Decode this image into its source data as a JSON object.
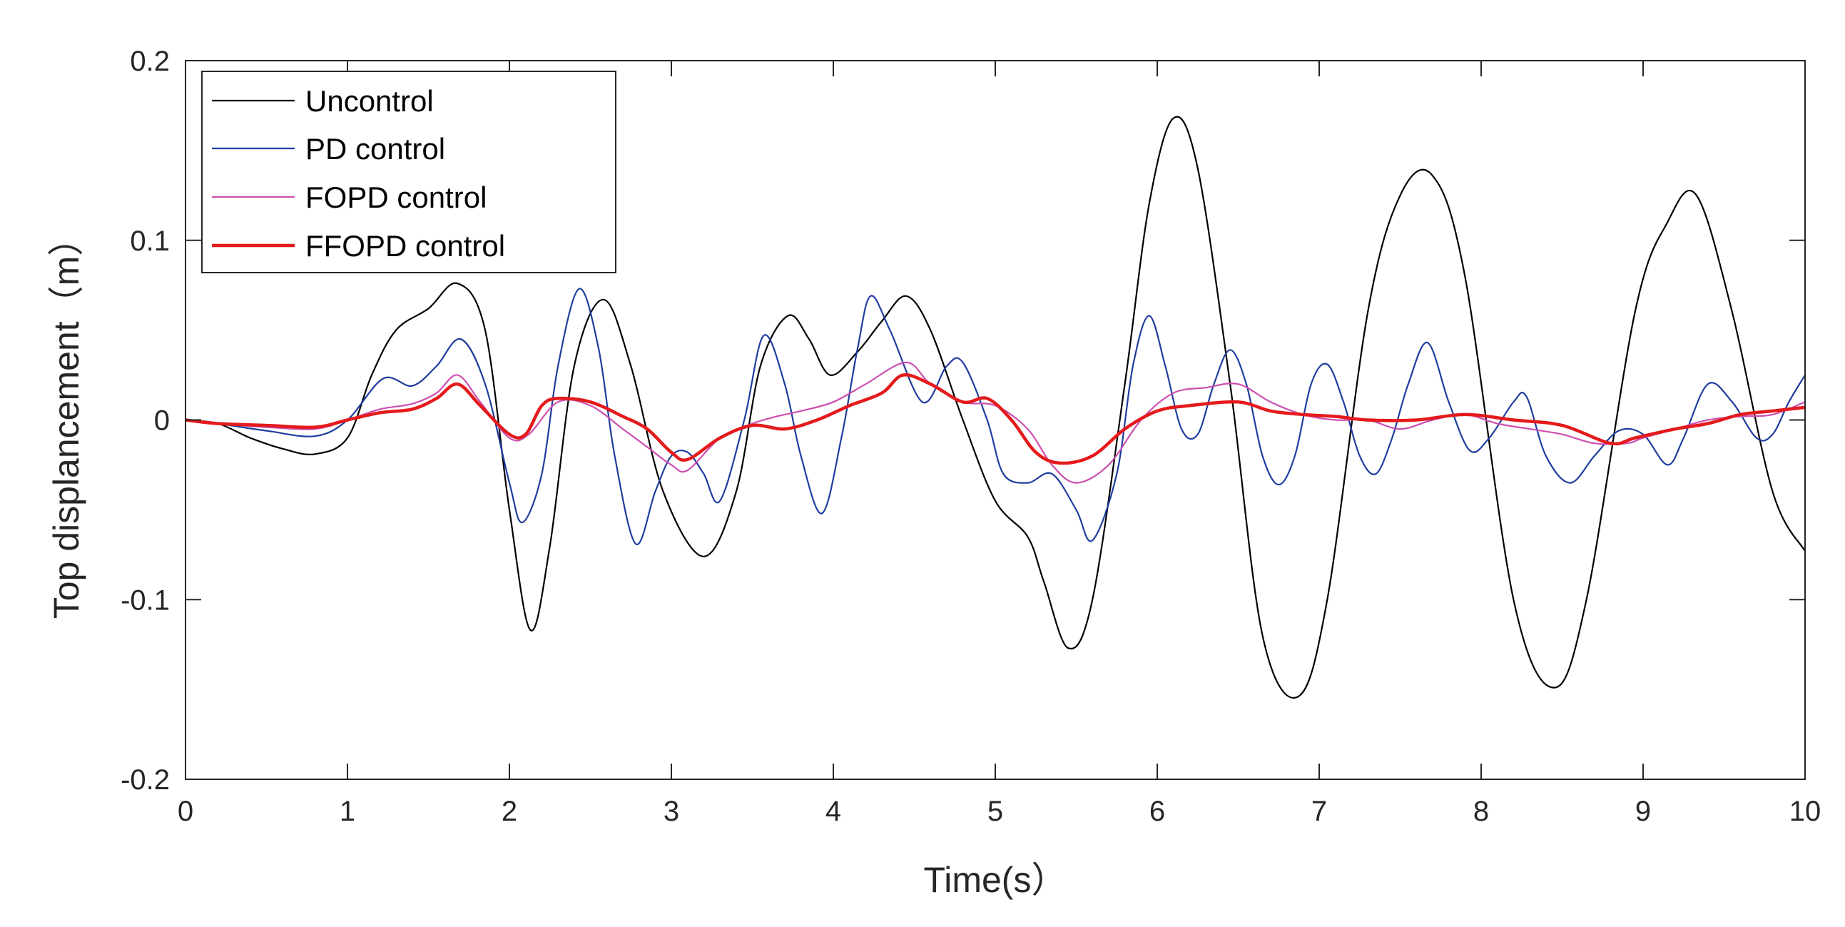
{
  "chart_data": {
    "type": "line",
    "xlabel": "Time(s）",
    "ylabel": "Top displancement（m）",
    "xlim": [
      0,
      10
    ],
    "ylim": [
      -0.2,
      0.2
    ],
    "xticks": [
      0,
      1,
      2,
      3,
      4,
      5,
      6,
      7,
      8,
      9,
      10
    ],
    "yticks": [
      -0.2,
      -0.1,
      0,
      0.1,
      0.2
    ],
    "xtick_labels": [
      "0",
      "1",
      "2",
      "3",
      "4",
      "5",
      "6",
      "7",
      "8",
      "9",
      "10"
    ],
    "ytick_labels": [
      "-0.2",
      "-0.1",
      "0",
      "0.1",
      "0.2"
    ],
    "legend_position": "top-left",
    "grid": false,
    "series": [
      {
        "name": "Uncontrol",
        "color": "#000000",
        "points": [
          [
            0,
            0
          ],
          [
            0.2,
            -0.002
          ],
          [
            0.4,
            -0.01
          ],
          [
            0.6,
            -0.016
          ],
          [
            0.8,
            -0.019
          ],
          [
            1.0,
            -0.01
          ],
          [
            1.15,
            0.025
          ],
          [
            1.3,
            0.05
          ],
          [
            1.5,
            0.062
          ],
          [
            1.68,
            0.076
          ],
          [
            1.85,
            0.05
          ],
          [
            2.0,
            -0.05
          ],
          [
            2.13,
            -0.117
          ],
          [
            2.25,
            -0.07
          ],
          [
            2.4,
            0.03
          ],
          [
            2.58,
            0.067
          ],
          [
            2.75,
            0.03
          ],
          [
            2.95,
            -0.04
          ],
          [
            3.2,
            -0.076
          ],
          [
            3.4,
            -0.04
          ],
          [
            3.55,
            0.03
          ],
          [
            3.72,
            0.058
          ],
          [
            3.85,
            0.045
          ],
          [
            3.98,
            0.025
          ],
          [
            4.15,
            0.038
          ],
          [
            4.3,
            0.055
          ],
          [
            4.45,
            0.069
          ],
          [
            4.6,
            0.05
          ],
          [
            4.8,
            0.0
          ],
          [
            5.0,
            -0.045
          ],
          [
            5.2,
            -0.065
          ],
          [
            5.3,
            -0.09
          ],
          [
            5.45,
            -0.127
          ],
          [
            5.6,
            -0.1
          ],
          [
            5.8,
            0.02
          ],
          [
            5.95,
            0.12
          ],
          [
            6.1,
            0.168
          ],
          [
            6.25,
            0.14
          ],
          [
            6.45,
            0.02
          ],
          [
            6.65,
            -0.12
          ],
          [
            6.87,
            -0.154
          ],
          [
            7.05,
            -0.1
          ],
          [
            7.3,
            0.06
          ],
          [
            7.5,
            0.125
          ],
          [
            7.7,
            0.136
          ],
          [
            7.9,
            0.08
          ],
          [
            8.2,
            -0.1
          ],
          [
            8.45,
            -0.149
          ],
          [
            8.65,
            -0.1
          ],
          [
            8.95,
            0.06
          ],
          [
            9.15,
            0.11
          ],
          [
            9.33,
            0.125
          ],
          [
            9.55,
            0.06
          ],
          [
            9.8,
            -0.04
          ],
          [
            10.0,
            -0.073
          ]
        ]
      },
      {
        "name": "PD control",
        "color": "#1f3d9e",
        "points": [
          [
            0,
            0
          ],
          [
            0.2,
            -0.002
          ],
          [
            0.5,
            -0.006
          ],
          [
            0.8,
            -0.009
          ],
          [
            1.0,
            0.0
          ],
          [
            1.22,
            0.023
          ],
          [
            1.4,
            0.019
          ],
          [
            1.55,
            0.03
          ],
          [
            1.7,
            0.045
          ],
          [
            1.85,
            0.02
          ],
          [
            2.0,
            -0.035
          ],
          [
            2.08,
            -0.057
          ],
          [
            2.2,
            -0.03
          ],
          [
            2.3,
            0.03
          ],
          [
            2.43,
            0.073
          ],
          [
            2.55,
            0.04
          ],
          [
            2.65,
            -0.02
          ],
          [
            2.78,
            -0.069
          ],
          [
            2.9,
            -0.04
          ],
          [
            3.0,
            -0.02
          ],
          [
            3.1,
            -0.018
          ],
          [
            3.2,
            -0.03
          ],
          [
            3.3,
            -0.045
          ],
          [
            3.45,
            0.0
          ],
          [
            3.57,
            0.047
          ],
          [
            3.7,
            0.02
          ],
          [
            3.8,
            -0.02
          ],
          [
            3.93,
            -0.052
          ],
          [
            4.05,
            -0.01
          ],
          [
            4.15,
            0.04
          ],
          [
            4.23,
            0.069
          ],
          [
            4.35,
            0.05
          ],
          [
            4.55,
            0.01
          ],
          [
            4.7,
            0.03
          ],
          [
            4.8,
            0.032
          ],
          [
            4.95,
            0.0
          ],
          [
            5.05,
            -0.03
          ],
          [
            5.2,
            -0.035
          ],
          [
            5.35,
            -0.03
          ],
          [
            5.5,
            -0.05
          ],
          [
            5.6,
            -0.067
          ],
          [
            5.75,
            -0.03
          ],
          [
            5.85,
            0.03
          ],
          [
            5.95,
            0.058
          ],
          [
            6.05,
            0.03
          ],
          [
            6.15,
            -0.005
          ],
          [
            6.25,
            -0.008
          ],
          [
            6.35,
            0.02
          ],
          [
            6.45,
            0.039
          ],
          [
            6.55,
            0.02
          ],
          [
            6.65,
            -0.02
          ],
          [
            6.75,
            -0.036
          ],
          [
            6.85,
            -0.02
          ],
          [
            6.95,
            0.02
          ],
          [
            7.05,
            0.031
          ],
          [
            7.15,
            0.01
          ],
          [
            7.25,
            -0.02
          ],
          [
            7.35,
            -0.03
          ],
          [
            7.45,
            -0.01
          ],
          [
            7.55,
            0.02
          ],
          [
            7.67,
            0.043
          ],
          [
            7.8,
            0.01
          ],
          [
            7.93,
            -0.017
          ],
          [
            8.05,
            -0.01
          ],
          [
            8.2,
            0.01
          ],
          [
            8.28,
            0.013
          ],
          [
            8.4,
            -0.02
          ],
          [
            8.55,
            -0.035
          ],
          [
            8.7,
            -0.02
          ],
          [
            8.85,
            -0.006
          ],
          [
            9.0,
            -0.008
          ],
          [
            9.15,
            -0.025
          ],
          [
            9.25,
            -0.01
          ],
          [
            9.4,
            0.02
          ],
          [
            9.55,
            0.01
          ],
          [
            9.7,
            -0.01
          ],
          [
            9.8,
            -0.008
          ],
          [
            9.9,
            0.01
          ],
          [
            10.0,
            0.025
          ]
        ]
      },
      {
        "name": "FOPD control",
        "color": "#cc4fb0",
        "points": [
          [
            0,
            0
          ],
          [
            0.2,
            -0.002
          ],
          [
            0.5,
            -0.004
          ],
          [
            0.8,
            -0.005
          ],
          [
            1.0,
            0.0
          ],
          [
            1.2,
            0.006
          ],
          [
            1.4,
            0.009
          ],
          [
            1.55,
            0.015
          ],
          [
            1.68,
            0.025
          ],
          [
            1.82,
            0.01
          ],
          [
            2.0,
            -0.01
          ],
          [
            2.12,
            -0.008
          ],
          [
            2.3,
            0.01
          ],
          [
            2.5,
            0.008
          ],
          [
            2.7,
            -0.005
          ],
          [
            2.85,
            -0.015
          ],
          [
            3.0,
            -0.025
          ],
          [
            3.1,
            -0.028
          ],
          [
            3.3,
            -0.01
          ],
          [
            3.5,
            -0.002
          ],
          [
            3.65,
            0.002
          ],
          [
            3.8,
            0.005
          ],
          [
            4.0,
            0.01
          ],
          [
            4.2,
            0.02
          ],
          [
            4.45,
            0.032
          ],
          [
            4.6,
            0.02
          ],
          [
            4.8,
            0.01
          ],
          [
            5.0,
            0.008
          ],
          [
            5.2,
            -0.005
          ],
          [
            5.35,
            -0.025
          ],
          [
            5.5,
            -0.035
          ],
          [
            5.7,
            -0.025
          ],
          [
            5.9,
            0.0
          ],
          [
            6.1,
            0.015
          ],
          [
            6.3,
            0.018
          ],
          [
            6.5,
            0.02
          ],
          [
            6.7,
            0.01
          ],
          [
            6.9,
            0.003
          ],
          [
            7.1,
            0.0
          ],
          [
            7.3,
            0.0
          ],
          [
            7.5,
            -0.005
          ],
          [
            7.7,
            0.0
          ],
          [
            7.9,
            0.003
          ],
          [
            8.1,
            -0.002
          ],
          [
            8.3,
            -0.005
          ],
          [
            8.5,
            -0.008
          ],
          [
            8.7,
            -0.013
          ],
          [
            8.9,
            -0.013
          ],
          [
            9.0,
            -0.01
          ],
          [
            9.2,
            -0.005
          ],
          [
            9.4,
            0.0
          ],
          [
            9.6,
            0.002
          ],
          [
            9.8,
            0.003
          ],
          [
            10.0,
            0.01
          ]
        ]
      },
      {
        "name": "FFOPD control",
        "color": "#e41a1c",
        "points": [
          [
            0,
            0
          ],
          [
            0.2,
            -0.002
          ],
          [
            0.5,
            -0.003
          ],
          [
            0.8,
            -0.004
          ],
          [
            1.0,
            0.0
          ],
          [
            1.2,
            0.004
          ],
          [
            1.4,
            0.006
          ],
          [
            1.55,
            0.012
          ],
          [
            1.68,
            0.02
          ],
          [
            1.82,
            0.008
          ],
          [
            2.0,
            -0.008
          ],
          [
            2.1,
            -0.008
          ],
          [
            2.2,
            0.008
          ],
          [
            2.3,
            0.012
          ],
          [
            2.5,
            0.01
          ],
          [
            2.7,
            0.002
          ],
          [
            2.85,
            -0.005
          ],
          [
            3.0,
            -0.018
          ],
          [
            3.1,
            -0.022
          ],
          [
            3.3,
            -0.01
          ],
          [
            3.5,
            -0.003
          ],
          [
            3.7,
            -0.005
          ],
          [
            3.9,
            0.0
          ],
          [
            4.1,
            0.008
          ],
          [
            4.3,
            0.015
          ],
          [
            4.43,
            0.025
          ],
          [
            4.6,
            0.02
          ],
          [
            4.8,
            0.01
          ],
          [
            4.95,
            0.012
          ],
          [
            5.1,
            0.0
          ],
          [
            5.25,
            -0.018
          ],
          [
            5.4,
            -0.024
          ],
          [
            5.6,
            -0.02
          ],
          [
            5.8,
            -0.005
          ],
          [
            6.0,
            0.005
          ],
          [
            6.2,
            0.008
          ],
          [
            6.5,
            0.01
          ],
          [
            6.7,
            0.005
          ],
          [
            6.9,
            0.003
          ],
          [
            7.1,
            0.002
          ],
          [
            7.3,
            0.0
          ],
          [
            7.6,
            0.0
          ],
          [
            7.9,
            0.003
          ],
          [
            8.2,
            0.0
          ],
          [
            8.5,
            -0.003
          ],
          [
            8.8,
            -0.013
          ],
          [
            8.95,
            -0.01
          ],
          [
            9.2,
            -0.005
          ],
          [
            9.4,
            -0.002
          ],
          [
            9.6,
            0.003
          ],
          [
            9.8,
            0.005
          ],
          [
            10.0,
            0.007
          ]
        ]
      }
    ]
  }
}
